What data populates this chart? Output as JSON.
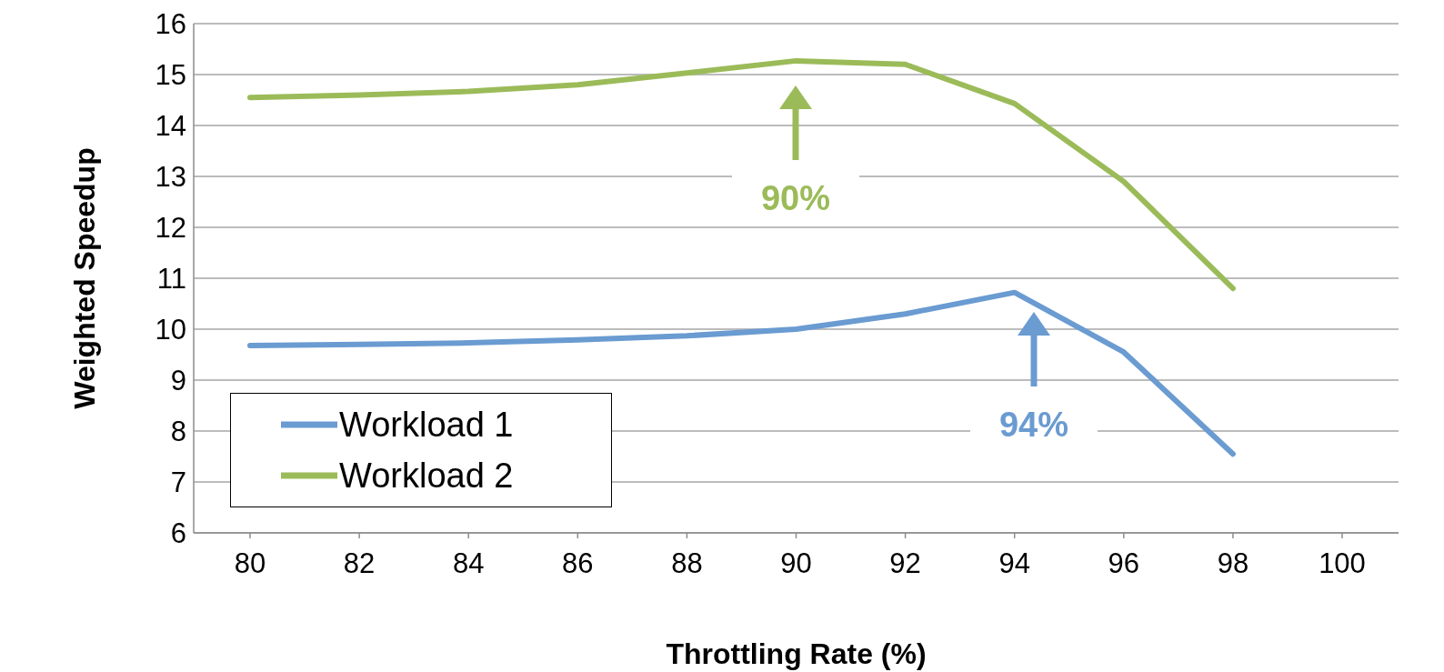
{
  "chart_data": {
    "type": "line",
    "xlabel": "Throttling Rate (%)",
    "ylabel": "Weighted Speedup",
    "categories": [
      "80",
      "82",
      "84",
      "86",
      "88",
      "90",
      "92",
      "94",
      "96",
      "98",
      "100"
    ],
    "series": [
      {
        "name": "Workload 1",
        "color": "#6a9bd1",
        "values": [
          9.68,
          9.7,
          9.73,
          9.79,
          9.87,
          10.0,
          10.3,
          10.72,
          9.55,
          7.55,
          null
        ]
      },
      {
        "name": "Workload 2",
        "color": "#9bbb59",
        "values": [
          14.55,
          14.6,
          14.67,
          14.8,
          15.03,
          15.27,
          15.2,
          14.43,
          12.9,
          10.8,
          null
        ]
      }
    ],
    "ylim": [
      6,
      16
    ],
    "yticks": [
      6,
      7,
      8,
      9,
      10,
      11,
      12,
      13,
      14,
      15,
      16
    ],
    "grid": "y",
    "legend": "bottom left",
    "annotations": [
      "94%",
      "90%"
    ]
  }
}
